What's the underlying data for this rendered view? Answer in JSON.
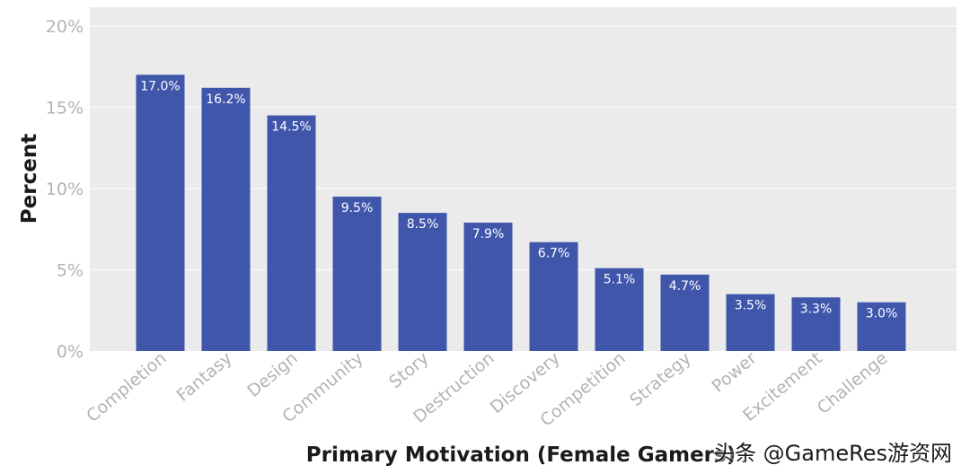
{
  "chart_data": {
    "type": "bar",
    "title": "",
    "xlabel": "Primary Motivation (Female Gamers)",
    "ylabel": "Percent",
    "ylim": [
      0,
      20
    ],
    "yticks": [
      0,
      5,
      10,
      15,
      20
    ],
    "ytick_labels": [
      "0%",
      "5%",
      "10%",
      "15%",
      "20%"
    ],
    "categories": [
      "Completion",
      "Fantasy",
      "Design",
      "Community",
      "Story",
      "Destruction",
      "Discovery",
      "Competition",
      "Strategy",
      "Power",
      "Excitement",
      "Challenge"
    ],
    "values": [
      17.0,
      16.2,
      14.5,
      9.5,
      8.5,
      7.9,
      6.7,
      5.1,
      4.7,
      3.5,
      3.3,
      3.0
    ],
    "data_labels": [
      "17.0%",
      "16.2%",
      "14.5%",
      "9.5%",
      "8.5%",
      "7.9%",
      "6.7%",
      "5.1%",
      "4.7%",
      "3.5%",
      "3.3%",
      "3.0%"
    ],
    "grid": true,
    "legend": "none",
    "bar_color": "#3f56ab",
    "plot_background": "#ebebeb",
    "grid_color": "#f7f7f7"
  },
  "watermark": {
    "text": "头条 @GameRes游资网"
  }
}
